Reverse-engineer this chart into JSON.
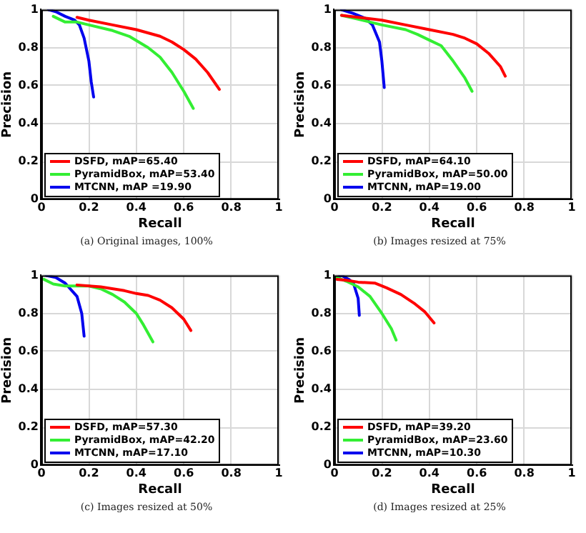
{
  "chart_data": [
    {
      "type": "line",
      "xlabel": "Recall",
      "ylabel": "Precision",
      "annotations": [
        "(a) Original images, 100%"
      ],
      "xlim": [
        0,
        1
      ],
      "ylim": [
        0,
        1
      ],
      "xticks": [
        0,
        0.2,
        0.4,
        0.6,
        0.8,
        1
      ],
      "yticks": [
        0,
        0.2,
        0.4,
        0.6,
        0.8,
        1
      ],
      "grid": true,
      "legend": "bottom left",
      "marker": "none",
      "line_style": "solid",
      "series": [
        {
          "name": "DSFD, mAP=65.40",
          "color": "#ff0000",
          "x": [
            0.15,
            0.2,
            0.3,
            0.4,
            0.5,
            0.55,
            0.6,
            0.65,
            0.7,
            0.75
          ],
          "values": [
            0.96,
            0.945,
            0.92,
            0.895,
            0.86,
            0.83,
            0.79,
            0.74,
            0.67,
            0.58
          ]
        },
        {
          "name": "PyramidBox, mAP=53.40",
          "color": "#33ee33",
          "x": [
            0.05,
            0.1,
            0.15,
            0.2,
            0.3,
            0.37,
            0.45,
            0.5,
            0.55,
            0.6,
            0.64
          ],
          "values": [
            0.965,
            0.935,
            0.935,
            0.92,
            0.89,
            0.86,
            0.8,
            0.75,
            0.67,
            0.57,
            0.48
          ]
        },
        {
          "name": "MTCNN, mAP =19.90",
          "color": "#0000ee",
          "x": [
            0.03,
            0.06,
            0.1,
            0.14,
            0.16,
            0.18,
            0.2,
            0.21,
            0.22
          ],
          "values": [
            1.0,
            0.99,
            0.965,
            0.945,
            0.92,
            0.85,
            0.73,
            0.62,
            0.54
          ]
        }
      ]
    },
    {
      "type": "line",
      "xlabel": "Recall",
      "ylabel": "Precision",
      "annotations": [
        "(b) Images resized at 75%"
      ],
      "xlim": [
        0,
        1
      ],
      "ylim": [
        0,
        1
      ],
      "xticks": [
        0,
        0.2,
        0.4,
        0.6,
        0.8,
        1
      ],
      "yticks": [
        0,
        0.2,
        0.4,
        0.6,
        0.8,
        1
      ],
      "grid": true,
      "legend": "bottom left",
      "marker": "none",
      "line_style": "solid",
      "series": [
        {
          "name": "DSFD, mAP=64.10",
          "color": "#ff0000",
          "x": [
            0.03,
            0.1,
            0.2,
            0.3,
            0.4,
            0.5,
            0.55,
            0.6,
            0.65,
            0.7,
            0.72
          ],
          "values": [
            0.97,
            0.96,
            0.945,
            0.92,
            0.895,
            0.87,
            0.85,
            0.82,
            0.77,
            0.7,
            0.65
          ]
        },
        {
          "name": "PyramidBox, mAP=50.00",
          "color": "#33ee33",
          "x": [
            0.03,
            0.1,
            0.2,
            0.3,
            0.35,
            0.4,
            0.45,
            0.5,
            0.55,
            0.58
          ],
          "values": [
            0.97,
            0.95,
            0.92,
            0.895,
            0.87,
            0.84,
            0.81,
            0.73,
            0.64,
            0.57
          ]
        },
        {
          "name": "MTCNN, mAP=19.00",
          "color": "#0000ee",
          "x": [
            0.03,
            0.08,
            0.13,
            0.16,
            0.19,
            0.2,
            0.21
          ],
          "values": [
            1.0,
            0.98,
            0.955,
            0.92,
            0.83,
            0.73,
            0.59
          ]
        }
      ]
    },
    {
      "type": "line",
      "xlabel": "Recall",
      "ylabel": "Precision",
      "annotations": [
        "(c) Images resized at 50%"
      ],
      "xlim": [
        0,
        1
      ],
      "ylim": [
        0,
        1
      ],
      "xticks": [
        0,
        0.2,
        0.4,
        0.6,
        0.8,
        1
      ],
      "yticks": [
        0,
        0.2,
        0.4,
        0.6,
        0.8,
        1
      ],
      "grid": true,
      "legend": "bottom left",
      "marker": "none",
      "line_style": "solid",
      "series": [
        {
          "name": "DSFD, mAP=57.30",
          "color": "#ff0000",
          "x": [
            0.15,
            0.25,
            0.35,
            0.4,
            0.45,
            0.5,
            0.55,
            0.6,
            0.63
          ],
          "values": [
            0.95,
            0.94,
            0.92,
            0.905,
            0.895,
            0.87,
            0.83,
            0.77,
            0.71
          ]
        },
        {
          "name": "PyramidBox, mAP=42.20",
          "color": "#33ee33",
          "x": [
            0.01,
            0.05,
            0.1,
            0.2,
            0.25,
            0.3,
            0.35,
            0.4,
            0.43,
            0.47
          ],
          "values": [
            0.98,
            0.955,
            0.945,
            0.945,
            0.93,
            0.9,
            0.86,
            0.8,
            0.74,
            0.65
          ]
        },
        {
          "name": "MTCNN, mAP=17.10",
          "color": "#0000ee",
          "x": [
            0.02,
            0.06,
            0.1,
            0.15,
            0.17,
            0.18
          ],
          "values": [
            1.0,
            0.99,
            0.96,
            0.89,
            0.8,
            0.68
          ]
        }
      ]
    },
    {
      "type": "line",
      "xlabel": "Recall",
      "ylabel": "Precision",
      "annotations": [
        "(d) Images resized at 25%"
      ],
      "xlim": [
        0,
        1
      ],
      "ylim": [
        0,
        1
      ],
      "xticks": [
        0,
        0.2,
        0.4,
        0.6,
        0.8,
        1
      ],
      "yticks": [
        0,
        0.2,
        0.4,
        0.6,
        0.8,
        1
      ],
      "grid": true,
      "legend": "bottom left",
      "marker": "none",
      "line_style": "solid",
      "series": [
        {
          "name": "DSFD, mAP=39.20",
          "color": "#ff0000",
          "x": [
            0.01,
            0.05,
            0.1,
            0.17,
            0.22,
            0.28,
            0.34,
            0.38,
            0.42
          ],
          "values": [
            0.98,
            0.975,
            0.965,
            0.96,
            0.935,
            0.9,
            0.85,
            0.81,
            0.75
          ]
        },
        {
          "name": "PyramidBox, mAP=23.60",
          "color": "#33ee33",
          "x": [
            0.01,
            0.05,
            0.1,
            0.15,
            0.2,
            0.24,
            0.26
          ],
          "values": [
            0.99,
            0.97,
            0.94,
            0.89,
            0.8,
            0.72,
            0.66
          ]
        },
        {
          "name": "MTCNN, mAP=10.30",
          "color": "#0000ee",
          "x": [
            0.01,
            0.03,
            0.06,
            0.08,
            0.1,
            0.105
          ],
          "values": [
            0.99,
            1.0,
            0.98,
            0.96,
            0.88,
            0.79
          ]
        }
      ]
    }
  ]
}
